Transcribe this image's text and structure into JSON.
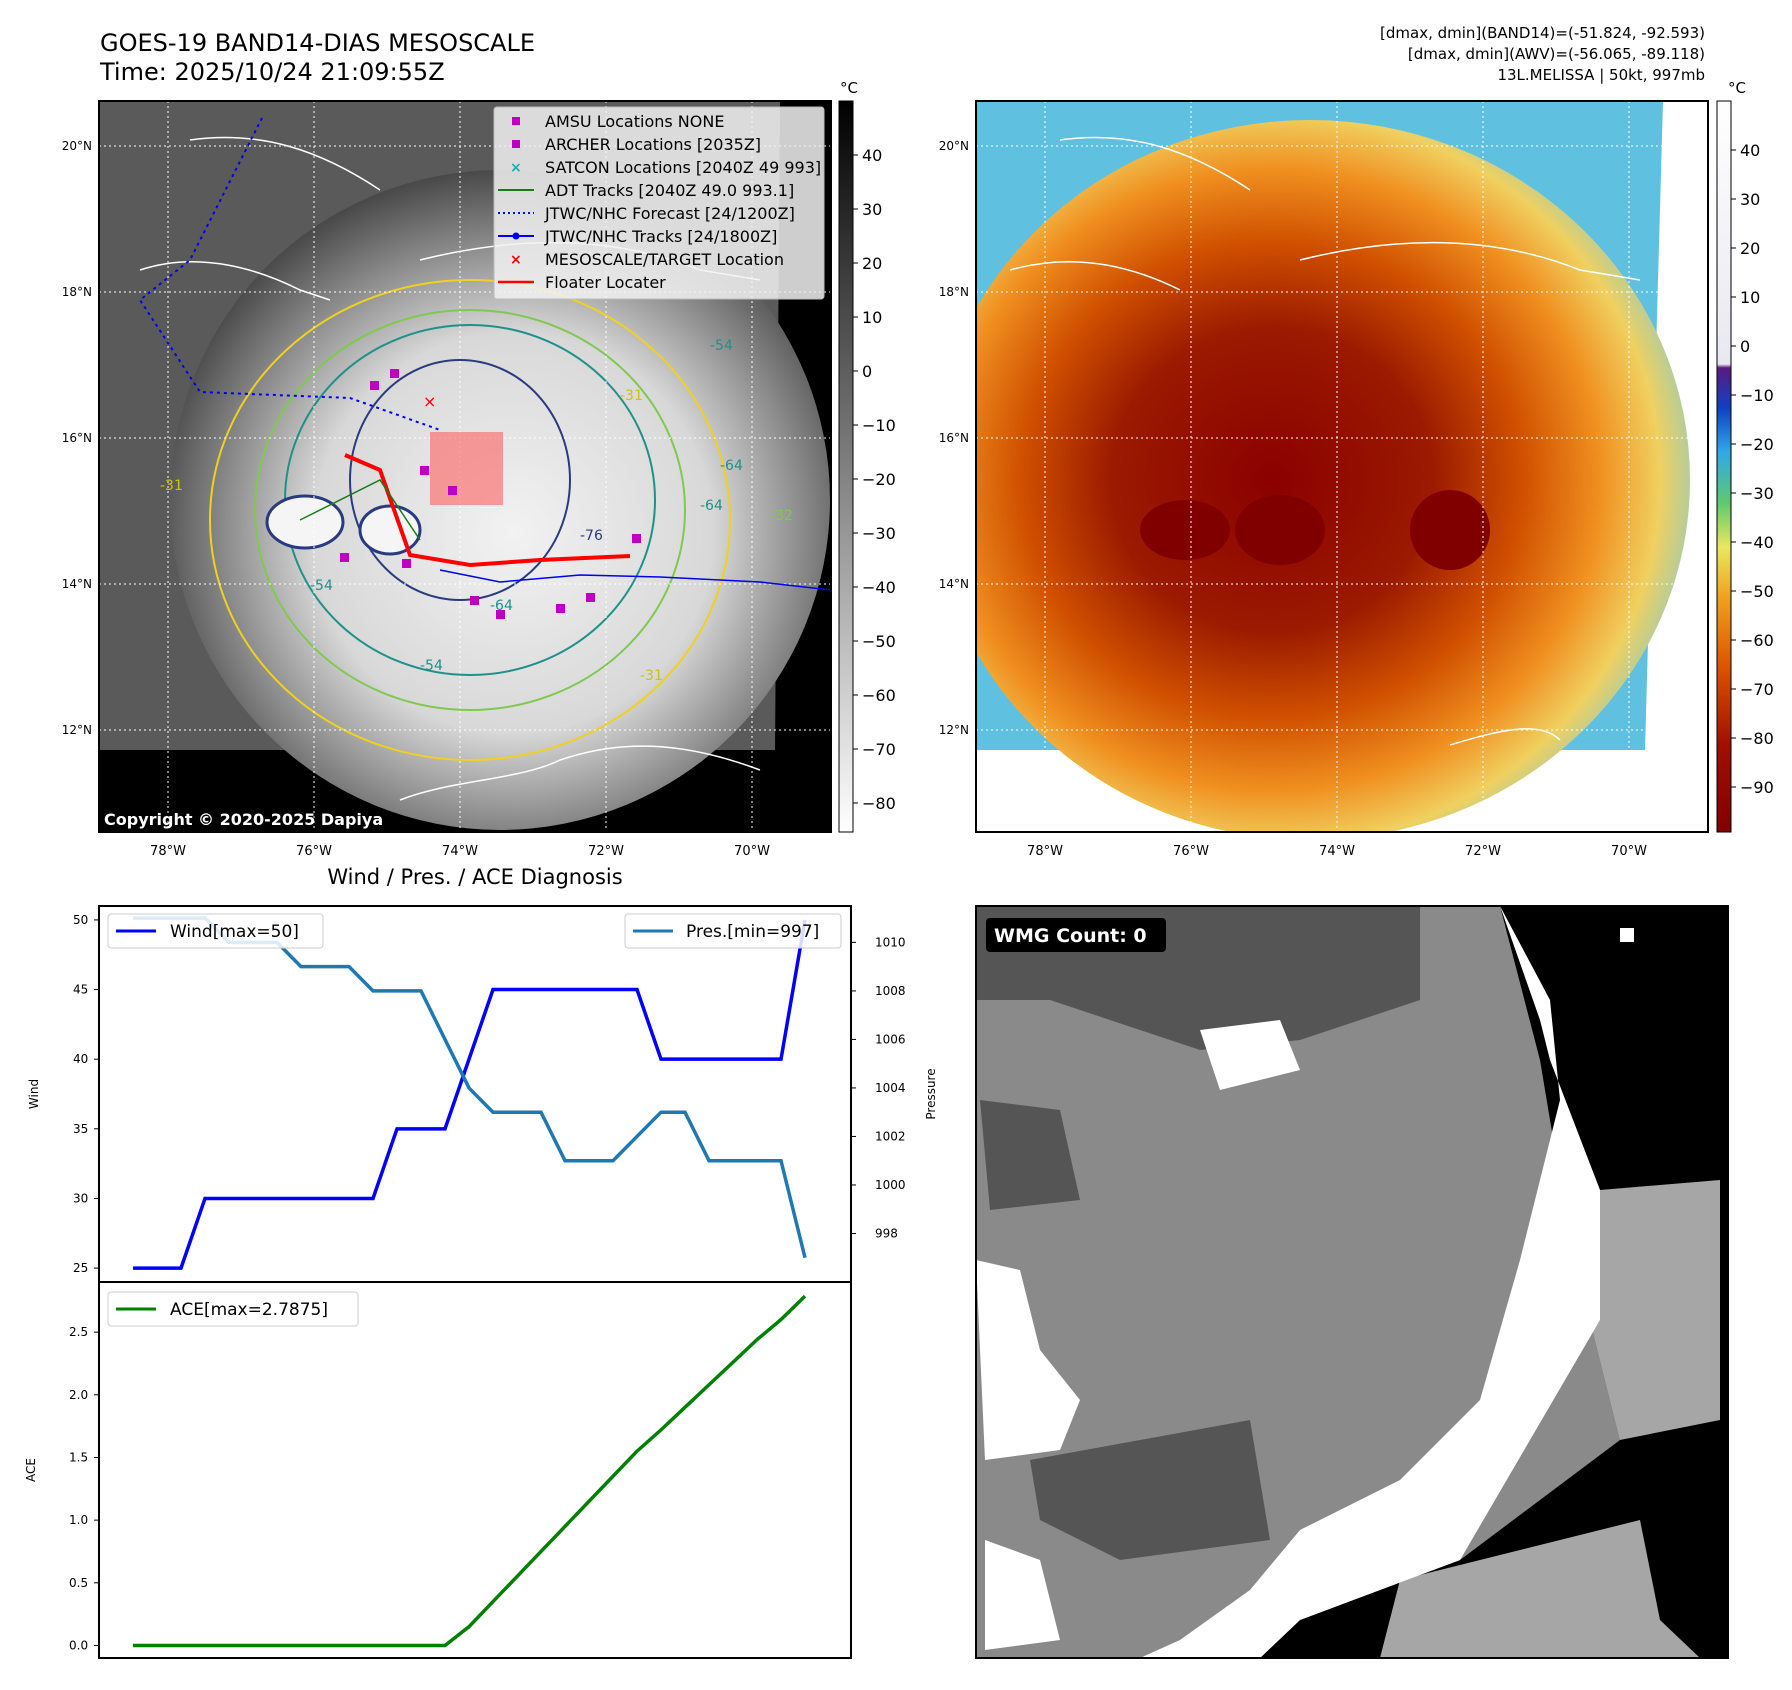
{
  "header": {
    "title_line1": "GOES-19 BAND14-DIAS MESOSCALE",
    "title_line2": "Time: 2025/10/24 21:09:55Z",
    "info_line1": "[dmax, dmin](BAND14)=(-51.824, -92.593)",
    "info_line2": "[dmax, dmin](AWV)=(-56.065, -89.118)",
    "info_line3": "13L.MELISSA | 50kt, 997mb"
  },
  "map_axes": {
    "lat_labels": [
      "20°N",
      "18°N",
      "16°N",
      "14°N",
      "12°N"
    ],
    "lon_labels": [
      "78°W",
      "76°W",
      "74°W",
      "72°W",
      "70°W"
    ]
  },
  "left_map": {
    "copyright": "Copyright © 2020-2025 Dapiya",
    "contour_labels": [
      "-54",
      "-64",
      "-76",
      "-64",
      "-54",
      "-31",
      "-31",
      "-54",
      "-31",
      "-32",
      "-64"
    ],
    "legend": [
      {
        "label": "AMSU Locations NONE",
        "color": "#c000c0",
        "marker": "square"
      },
      {
        "label": "ARCHER Locations [2035Z]",
        "color": "#c000c0",
        "marker": "square"
      },
      {
        "label": "SATCON Locations [2040Z 49 993]",
        "color": "#14b0b0",
        "marker": "x"
      },
      {
        "label": "ADT Tracks [2040Z 49.0 993.1]",
        "color": "#1a7a1a",
        "marker": "line"
      },
      {
        "label": "JTWC/NHC Forecast [24/1200Z]",
        "color": "#0000ee",
        "marker": "dotted"
      },
      {
        "label": "JTWC/NHC Tracks [24/1800Z]",
        "color": "#0000ee",
        "marker": "line-dot"
      },
      {
        "label": "MESOSCALE/TARGET Location",
        "color": "#ff0000",
        "marker": "x"
      },
      {
        "label": "Floater Locater",
        "color": "#ff0000",
        "marker": "line"
      }
    ]
  },
  "gray_colorbar": {
    "unit": "°C",
    "ticks": [
      "40",
      "30",
      "20",
      "10",
      "0",
      "−10",
      "−20",
      "−30",
      "−40",
      "−50",
      "−60",
      "−70",
      "−80"
    ]
  },
  "color_colorbar": {
    "unit": "°C",
    "ticks": [
      "40",
      "30",
      "20",
      "10",
      "0",
      "−10",
      "−20",
      "−30",
      "−40",
      "−50",
      "−60",
      "−70",
      "−80",
      "−90"
    ]
  },
  "wmg": {
    "count_label": "WMG Count: 0"
  },
  "chart_data": [
    {
      "type": "line",
      "title": "Wind / Pres. / ACE Diagnosis",
      "ylabel": "Wind",
      "y2label": "Pressure",
      "ylim": [
        24,
        51
      ],
      "y2lim": [
        996,
        1011.5
      ],
      "yticks": [
        25,
        30,
        35,
        40,
        45,
        50
      ],
      "y2ticks": [
        998,
        1000,
        1002,
        1004,
        1006,
        1008,
        1010
      ],
      "x": [
        0,
        1,
        2,
        3,
        4,
        5,
        6,
        7,
        8,
        9,
        10,
        11,
        12,
        13,
        14,
        15,
        16,
        17,
        18,
        19,
        20,
        21,
        22,
        23,
        24,
        25,
        26,
        27,
        28
      ],
      "series": [
        {
          "name": "Wind[max=50]",
          "axis": "left",
          "color": "#0000ff",
          "values": [
            25,
            25,
            25,
            30,
            30,
            30,
            30,
            30,
            30,
            30,
            30,
            35,
            35,
            35,
            40,
            45,
            45,
            45,
            45,
            45,
            45,
            45,
            40,
            40,
            40,
            40,
            40,
            40,
            50
          ]
        },
        {
          "name": "Pres.[min=997]",
          "axis": "right",
          "color": "#1f77b4",
          "values": [
            1011,
            1011,
            1011,
            1011,
            1010,
            1010,
            1010,
            1009,
            1009,
            1009,
            1008,
            1008,
            1008,
            1006,
            1004,
            1003,
            1003,
            1003,
            1001,
            1001,
            1001,
            1002,
            1003,
            1003,
            1001,
            1001,
            1001,
            1001,
            997
          ]
        }
      ]
    },
    {
      "type": "line",
      "ylabel": "ACE",
      "ylim": [
        -0.1,
        2.9
      ],
      "yticks": [
        "0.0",
        "0.5",
        "1.0",
        "1.5",
        "2.0",
        "2.5"
      ],
      "x": [
        0,
        1,
        2,
        3,
        4,
        5,
        6,
        7,
        8,
        9,
        10,
        11,
        12,
        13,
        14,
        15,
        16,
        17,
        18,
        19,
        20,
        21,
        22,
        23,
        24,
        25,
        26,
        27,
        28
      ],
      "series": [
        {
          "name": "ACE[max=2.7875]",
          "color": "#008000",
          "values": [
            0,
            0,
            0,
            0,
            0,
            0,
            0,
            0,
            0,
            0,
            0,
            0,
            0,
            0,
            0.15,
            0.35,
            0.55,
            0.75,
            0.95,
            1.15,
            1.35,
            1.55,
            1.72,
            1.9,
            2.08,
            2.26,
            2.44,
            2.6,
            2.7875
          ]
        }
      ]
    }
  ]
}
